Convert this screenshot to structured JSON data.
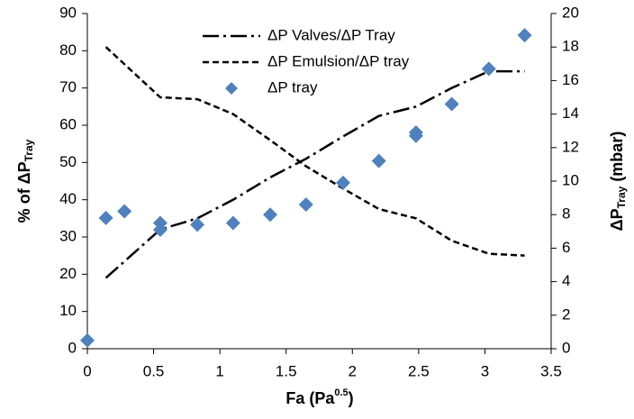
{
  "chart_data": {
    "type": "line",
    "xlabel": {
      "text": "Fa (Pa",
      "superscript": "0.5",
      "suffix": ")"
    },
    "ylabel": {
      "text": "% of ΔP",
      "subscript": "Tray"
    },
    "y2label": {
      "text": "ΔP",
      "subscript": "Tray",
      "suffix": " (mbar)"
    },
    "xlim": [
      0,
      3.5
    ],
    "xticks": [
      0,
      0.5,
      1,
      1.5,
      2,
      2.5,
      3,
      3.5
    ],
    "ylim": [
      0,
      90
    ],
    "yticks": [
      0,
      10,
      20,
      30,
      40,
      50,
      60,
      70,
      80,
      90
    ],
    "y2lim": [
      0,
      20
    ],
    "y2ticks": [
      0,
      2,
      4,
      6,
      8,
      10,
      12,
      14,
      16,
      18,
      20
    ],
    "grid": false,
    "legend": "top",
    "series": [
      {
        "name": "ΔP Valves/ΔP Tray",
        "kind": "line",
        "dash": "dash-dot",
        "color": "#000000",
        "x": [
          0.14,
          0.55,
          0.83,
          1.1,
          1.38,
          1.65,
          1.93,
          2.2,
          2.48,
          2.75,
          3.03,
          3.3
        ],
        "values": [
          19,
          32,
          35,
          40,
          46,
          51,
          57,
          62.5,
          65,
          70,
          74.5,
          74.5
        ]
      },
      {
        "name": "ΔP Emulsion/ΔP tray",
        "kind": "line",
        "dash": "dash",
        "color": "#000000",
        "x": [
          0.14,
          0.55,
          0.83,
          1.1,
          1.38,
          1.65,
          1.93,
          2.2,
          2.48,
          2.75,
          3.03,
          3.3
        ],
        "values": [
          81,
          67.5,
          67,
          63,
          56,
          49,
          43,
          37.5,
          35,
          29,
          25.5,
          25
        ]
      },
      {
        "name": "ΔP tray",
        "kind": "scatter",
        "axis": "y2",
        "color": "#4f81bd",
        "x": [
          0,
          0.14,
          0.28,
          0.55,
          0.55,
          0.83,
          1.1,
          1.38,
          1.65,
          1.93,
          2.2,
          2.48,
          2.48,
          2.75,
          3.03,
          3.3
        ],
        "values": [
          0.5,
          7.8,
          8.2,
          7.5,
          7.1,
          7.4,
          7.5,
          8.0,
          8.6,
          9.9,
          11.2,
          12.7,
          12.9,
          14.6,
          16.7,
          18.7
        ]
      }
    ]
  }
}
